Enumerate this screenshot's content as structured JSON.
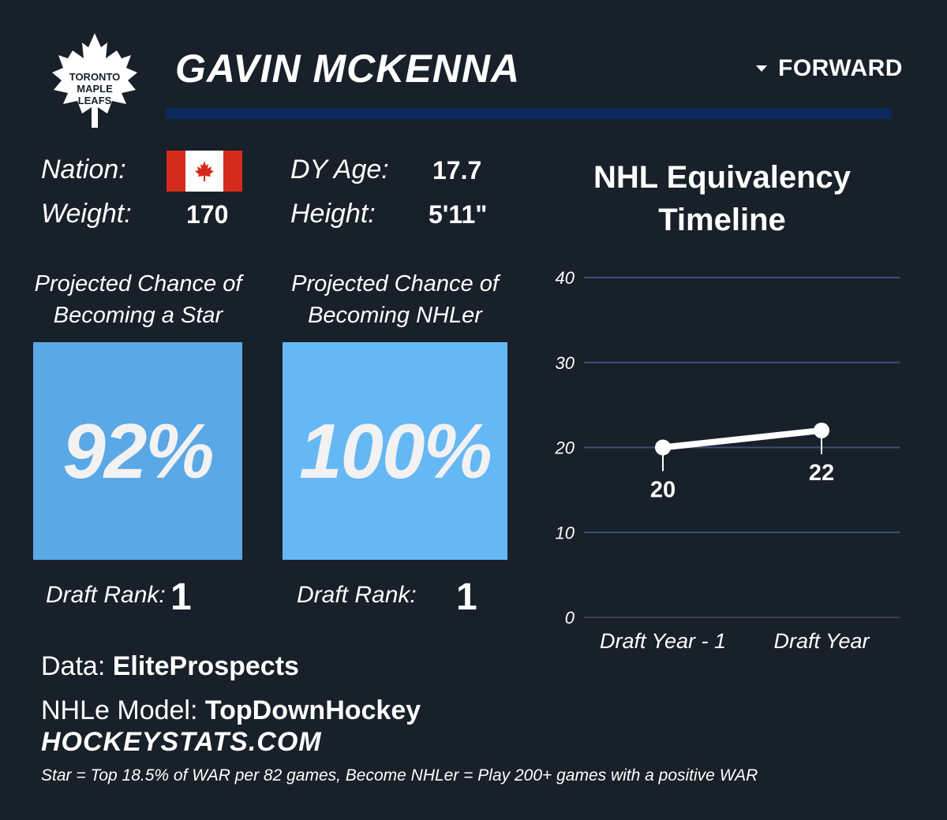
{
  "team": {
    "logo_line1": "TORONTO",
    "logo_line2": "MAPLE",
    "logo_line3": "LEAFS"
  },
  "player": {
    "name": "GAVIN MCKENNA",
    "position": "FORWARD"
  },
  "info": {
    "nation_label": "Nation:",
    "weight_label": "Weight:",
    "weight_value": "170",
    "dy_age_label": "DY Age:",
    "dy_age_value": "17.7",
    "height_label": "Height:",
    "height_value": "5'11\""
  },
  "star": {
    "title_line1": "Projected Chance of",
    "title_line2": "Becoming a Star",
    "value": "92%",
    "box_color": "#5ba8e6",
    "rank_label": "Draft Rank:",
    "rank_value": "1"
  },
  "nhler": {
    "title_line1": "Projected Chance of",
    "title_line2": "Becoming NHLer",
    "value": "100%",
    "box_color": "#66b8f4",
    "rank_label": "Draft Rank:",
    "rank_value": "1"
  },
  "chart_data": {
    "type": "line",
    "title_line1": "NHL Equivalency",
    "title_line2": "Timeline",
    "categories": [
      "Draft Year - 1",
      "Draft Year"
    ],
    "values": [
      20,
      22
    ],
    "data_labels": [
      "20",
      "22"
    ],
    "ylim": [
      0,
      40
    ],
    "yticks": [
      "0",
      "10",
      "20",
      "30",
      "40"
    ],
    "grid": true
  },
  "footer": {
    "data_label": "Data:",
    "data_source": "EliteProspects",
    "model_label": "NHLe Model:",
    "model_source": "TopDownHockey",
    "brand": "HOCKEYSTATS.COM",
    "footnote": "Star = Top 18.5% of WAR per 82 games, Become NHLer = Play 200+ games with a positive WAR"
  }
}
